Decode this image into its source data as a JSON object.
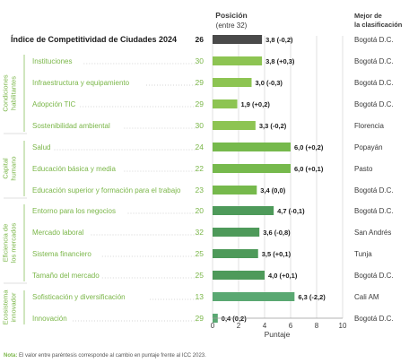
{
  "header": {
    "position_title": "Posición",
    "position_subtitle": "(entre 32)",
    "best_title_line1": "Mejor de",
    "best_title_line2": "la clasificación"
  },
  "groups": [
    {
      "name": "group-condiciones",
      "label_lines": [
        "Condiciones",
        "habilitantes"
      ]
    },
    {
      "name": "group-capital",
      "label_lines": [
        "Capital",
        "humano"
      ]
    },
    {
      "name": "group-eficiencia",
      "label_lines": [
        "Eficiencia de",
        "los mercados"
      ]
    },
    {
      "name": "group-ecosistema",
      "label_lines": [
        "Ecosistema",
        "innovador"
      ]
    }
  ],
  "colors": {
    "overall": "#4a4a4a",
    "condiciones": "#8dc452",
    "capital": "#76b94c",
    "eficiencia": "#4e9a5a",
    "ecosistema": "#5aa872",
    "label_green": "#7ab648",
    "grid": "#cfcfcf"
  },
  "chart_data": {
    "type": "bar",
    "orientation": "horizontal",
    "xlabel": "Puntaje",
    "xlim": [
      0,
      10
    ],
    "xticks": [
      0,
      2,
      4,
      6,
      8,
      10
    ],
    "grid": true,
    "rows": [
      {
        "pillar": "Índice de Competitividad de Ciudades 2024",
        "position": "26",
        "score": 3.8,
        "value_label": "3,8",
        "change": "(-0,2)",
        "best": "Bogotá D.C.",
        "group": "overall"
      },
      {
        "pillar": "Instituciones",
        "position": "30",
        "score": 3.8,
        "value_label": "3,8",
        "change": "(+0,3)",
        "best": "Bogotá D.C.",
        "group": "condiciones"
      },
      {
        "pillar": "Infraestructura y equipamiento",
        "position": "29",
        "score": 3.0,
        "value_label": "3,0",
        "change": "(-0,3)",
        "best": "Bogotá D.C.",
        "group": "condiciones"
      },
      {
        "pillar": "Adopción TIC",
        "position": "29",
        "score": 1.9,
        "value_label": "1,9",
        "change": "(+0,2)",
        "best": "Bogotá D.C.",
        "group": "condiciones"
      },
      {
        "pillar": "Sostenibilidad ambiental",
        "position": "30",
        "score": 3.3,
        "value_label": "3,3",
        "change": "(-0,2)",
        "best": "Florencia",
        "group": "condiciones"
      },
      {
        "pillar": "Salud",
        "position": "24",
        "score": 6.0,
        "value_label": "6,0",
        "change": "(+0,2)",
        "best": "Popayán",
        "group": "capital"
      },
      {
        "pillar": "Educación básica y media",
        "position": "22",
        "score": 6.0,
        "value_label": "6,0",
        "change": "(+0,1)",
        "best": "Pasto",
        "group": "capital"
      },
      {
        "pillar": "Educación superior y formación para el trabajo",
        "position": "23",
        "score": 3.4,
        "value_label": "3,4",
        "change": "(0,0)",
        "best": "Bogotá D.C.",
        "group": "capital"
      },
      {
        "pillar": "Entorno para los negocios",
        "position": "20",
        "score": 4.7,
        "value_label": "4,7",
        "change": "(-0,1)",
        "best": "Bogotá D.C.",
        "group": "eficiencia"
      },
      {
        "pillar": "Mercado laboral",
        "position": "32",
        "score": 3.6,
        "value_label": "3,6",
        "change": "(-0,8)",
        "best": "San Andrés",
        "group": "eficiencia"
      },
      {
        "pillar": "Sistema financiero",
        "position": "25",
        "score": 3.5,
        "value_label": "3,5",
        "change": "(+0,1)",
        "best": "Tunja",
        "group": "eficiencia"
      },
      {
        "pillar": "Tamaño del mercado",
        "position": "25",
        "score": 4.0,
        "value_label": "4,0",
        "change": "(+0,1)",
        "best": "Bogotá D.C.",
        "group": "eficiencia"
      },
      {
        "pillar": "Sofisticación y diversificación",
        "position": "13",
        "score": 6.3,
        "value_label": "6,3",
        "change": "(-2,2)",
        "best": "Cali AM",
        "group": "ecosistema"
      },
      {
        "pillar": "Innovación",
        "position": "29",
        "score": 0.4,
        "value_label": "0,4",
        "change": "(0,2)",
        "best": "Bogotá D.C.",
        "group": "ecosistema"
      }
    ]
  },
  "note": {
    "prefix": "Nota:",
    "text": " El valor entre paréntesis corresponde al cambio en puntaje frente al ICC 2023."
  }
}
